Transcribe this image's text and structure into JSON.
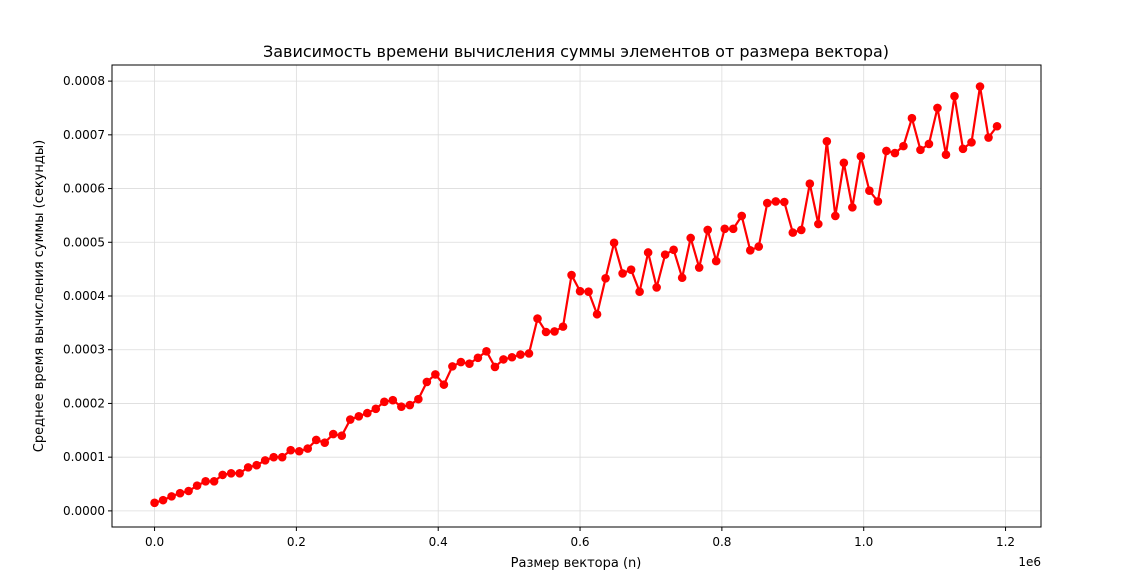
{
  "chart_data": {
    "type": "line",
    "title": "Зависимость времени вычисления суммы элементов от размера вектора)",
    "xlabel": "Размер вектора (n)",
    "ylabel": "Среднее время вычисления суммы (секунды)",
    "x_offset_label": "1e6",
    "xlim": [
      -60000,
      1250000
    ],
    "ylim": [
      -3e-05,
      0.00083
    ],
    "x_ticks": [
      0,
      200000,
      400000,
      600000,
      800000,
      1000000,
      1200000
    ],
    "x_tick_labels": [
      "0.0",
      "0.2",
      "0.4",
      "0.6",
      "0.8",
      "1.0",
      "1.2"
    ],
    "y_ticks": [
      0,
      0.0001,
      0.0002,
      0.0003,
      0.0004,
      0.0005,
      0.0006,
      0.0007,
      0.0008
    ],
    "y_tick_labels": [
      "0.0000",
      "0.0001",
      "0.0002",
      "0.0003",
      "0.0004",
      "0.0005",
      "0.0006",
      "0.0007",
      "0.0008"
    ],
    "grid": true,
    "line_color": "#ff0000",
    "marker": "circle",
    "series": [
      {
        "x": [
          0,
          12000,
          24000,
          36000,
          48000,
          60000,
          72000,
          84000,
          96000,
          108000,
          120000,
          132000,
          144000,
          156000,
          168000,
          180000,
          192000,
          204000,
          216000,
          228000,
          240000,
          252000,
          264000,
          276000,
          288000,
          300000,
          312000,
          324000,
          336000,
          348000,
          360000,
          372000,
          384000,
          396000,
          408000,
          420000,
          432000,
          444000,
          456000,
          468000,
          480000,
          492000,
          504000,
          516000,
          528000,
          540000,
          552000,
          564000,
          576000,
          588000,
          600000,
          612000,
          624000,
          636000,
          648000,
          660000,
          672000,
          684000,
          696000,
          708000,
          720000,
          732000,
          744000,
          756000,
          768000,
          780000,
          792000,
          804000,
          816000,
          828000,
          840000,
          852000,
          864000,
          876000,
          888000,
          900000,
          912000,
          924000,
          936000,
          948000,
          960000,
          972000,
          984000,
          996000,
          1008000,
          1020000,
          1032000,
          1044000,
          1056000,
          1068000,
          1080000,
          1092000,
          1104000,
          1116000,
          1128000,
          1140000,
          1152000,
          1164000,
          1176000,
          1188000
        ],
        "y": [
          1.5e-05,
          2e-05,
          2.7e-05,
          3.3e-05,
          3.7e-05,
          4.7e-05,
          5.5e-05,
          5.5e-05,
          6.7e-05,
          7e-05,
          7e-05,
          8.1e-05,
          8.5e-05,
          9.4e-05,
          0.0001,
          0.0001,
          0.000113,
          0.000111,
          0.000116,
          0.000132,
          0.000127,
          0.000143,
          0.00014,
          0.00017,
          0.000176,
          0.000182,
          0.00019,
          0.000203,
          0.000206,
          0.000194,
          0.000197,
          0.000208,
          0.00024,
          0.000254,
          0.000235,
          0.000269,
          0.000277,
          0.000274,
          0.000285,
          0.000297,
          0.000268,
          0.000282,
          0.000286,
          0.000291,
          0.000293,
          0.000358,
          0.000333,
          0.000334,
          0.000343,
          0.000439,
          0.000409,
          0.000408,
          0.000366,
          0.000433,
          0.000499,
          0.000442,
          0.000449,
          0.000408,
          0.000481,
          0.000416,
          0.000477,
          0.000486,
          0.000434,
          0.000508,
          0.000453,
          0.000523,
          0.000465,
          0.000525,
          0.000525,
          0.000549,
          0.000485,
          0.000492,
          0.000573,
          0.000576,
          0.000575,
          0.000518,
          0.000523,
          0.000609,
          0.000534,
          0.000688,
          0.000549,
          0.000648,
          0.000565,
          0.00066,
          0.000596,
          0.000576,
          0.00067,
          0.000666,
          0.000679,
          0.000731,
          0.000672,
          0.000683,
          0.00075,
          0.000663,
          0.000772,
          0.000674,
          0.000686,
          0.00079,
          0.000695,
          0.000716
        ]
      }
    ]
  }
}
